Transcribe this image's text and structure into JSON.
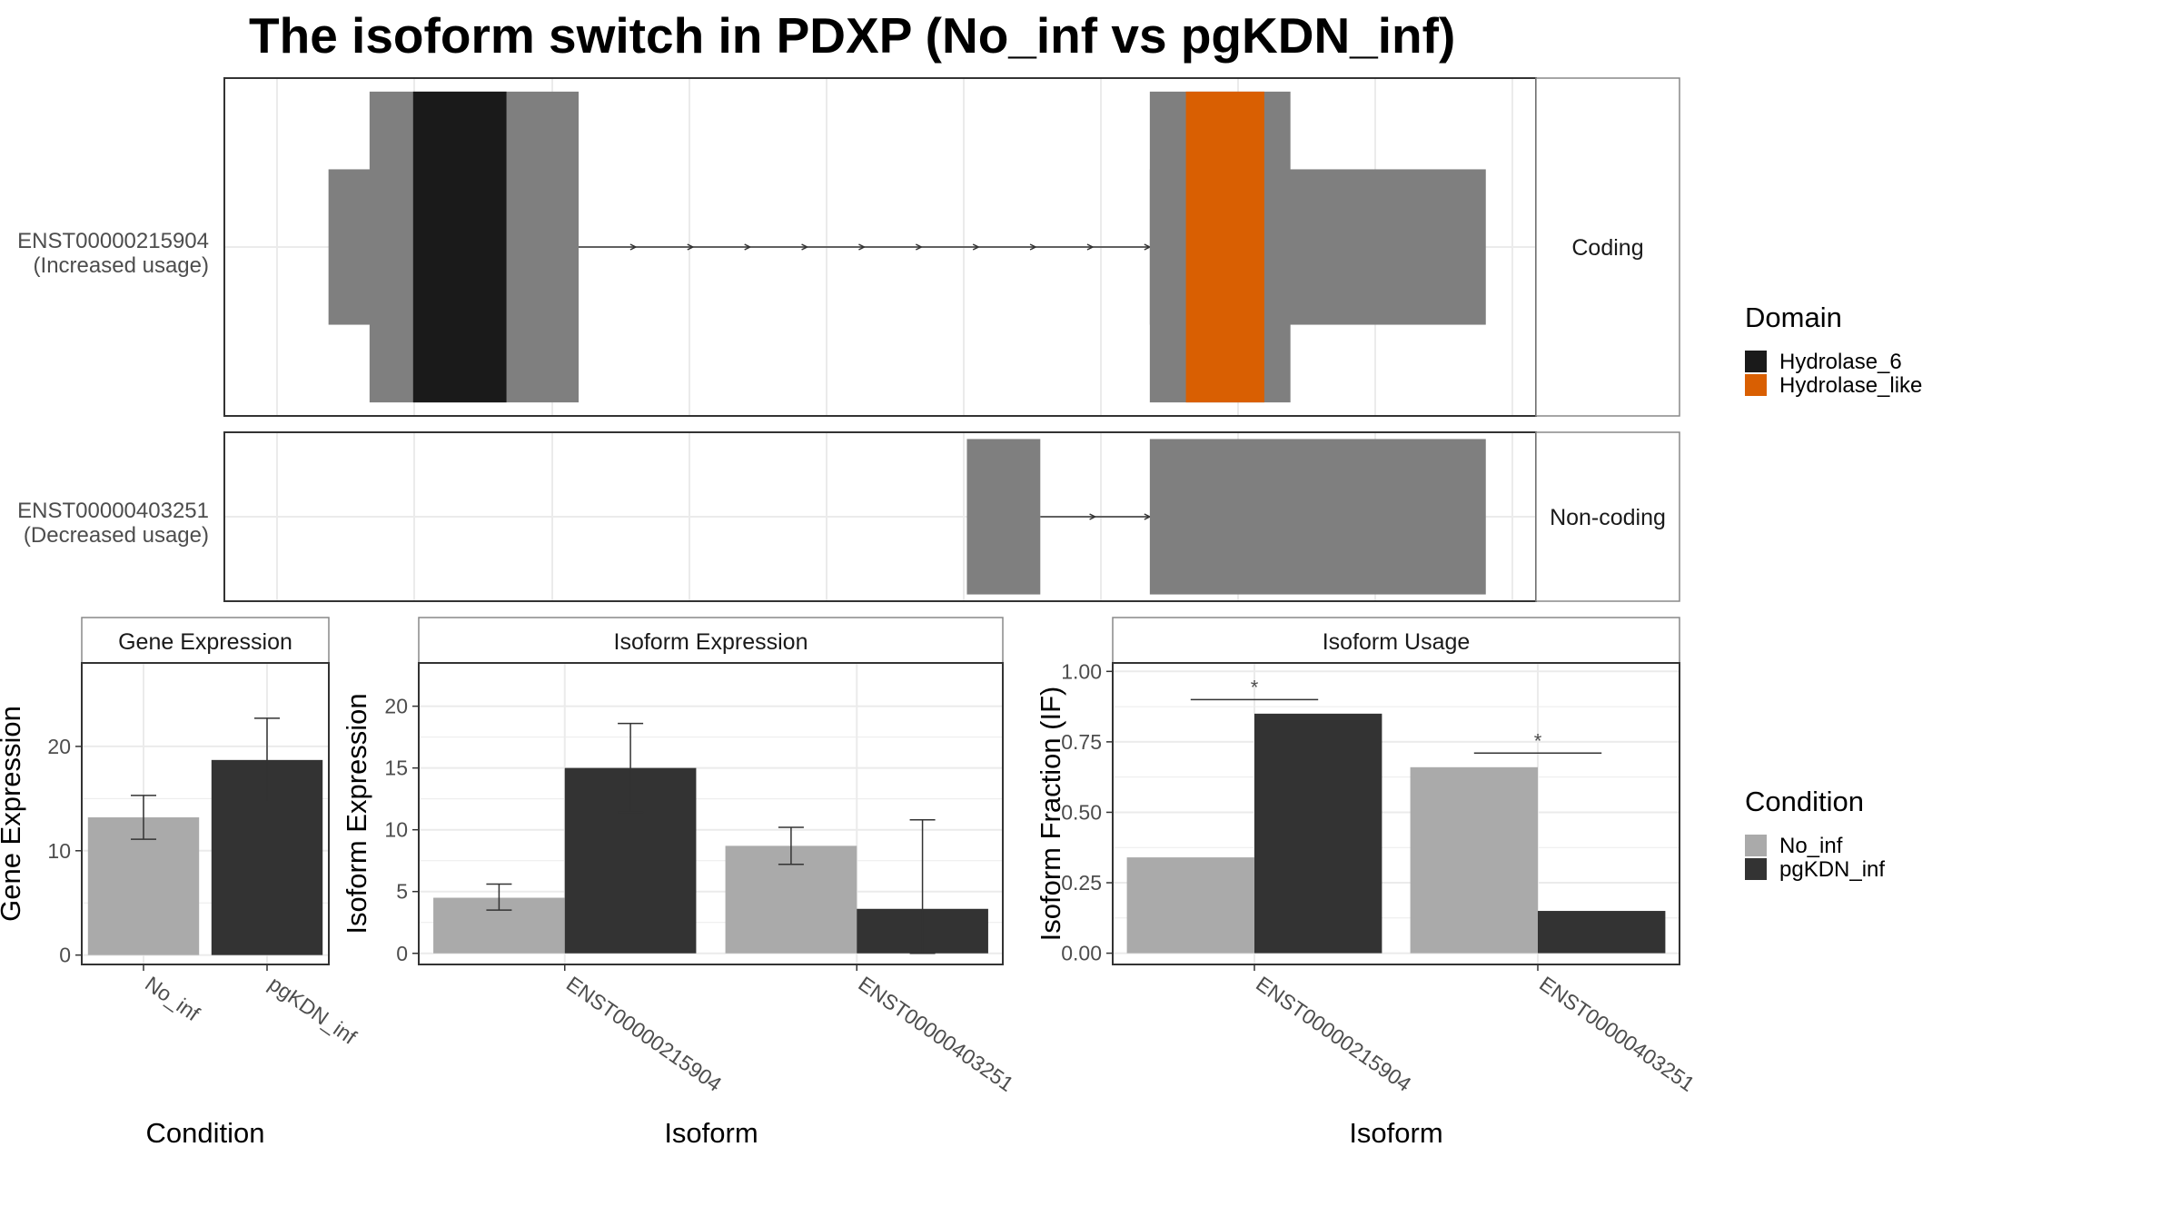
{
  "title": "The isoform switch in PDXP (No_inf vs pgKDN_inf)",
  "chart_data": [
    {
      "type": "gene-structure",
      "panels": [
        {
          "isoform": "ENST00000215904",
          "usage": "(Increased usage)",
          "strip": "Coding",
          "exons": [
            {
              "start": 0.045,
              "end": 0.115,
              "kind": "utr"
            },
            {
              "start": 0.078,
              "end": 0.246,
              "kind": "cds"
            },
            {
              "start": 0.113,
              "end": 0.188,
              "kind": "domain",
              "domain": "Hydrolase_6"
            },
            {
              "start": 0.705,
              "end": 0.975,
              "kind": "utr"
            },
            {
              "start": 0.705,
              "end": 0.818,
              "kind": "cds"
            },
            {
              "start": 0.734,
              "end": 0.797,
              "kind": "domain",
              "domain": "Hydrolase_like"
            }
          ],
          "introns": [
            {
              "start": 0.246,
              "end": 0.705
            }
          ]
        },
        {
          "isoform": "ENST00000403251",
          "usage": "(Decreased usage)",
          "strip": "Non-coding",
          "exons": [
            {
              "start": 0.558,
              "end": 0.617,
              "kind": "cds"
            },
            {
              "start": 0.705,
              "end": 0.975,
              "kind": "cds"
            }
          ],
          "introns": [
            {
              "start": 0.617,
              "end": 0.705
            }
          ]
        }
      ],
      "legend": {
        "title": "Domain",
        "entries": [
          {
            "label": "Hydrolase_6",
            "color": "#1a1a1a"
          },
          {
            "label": "Hydrolase_like",
            "color": "#d95f02"
          }
        ]
      }
    },
    {
      "type": "bar",
      "strip": "Gene Expression",
      "xlabel": "Condition",
      "ylabel": "Gene Expression",
      "categories": [
        "No_inf",
        "pgKDN_inf"
      ],
      "values": [
        13.2,
        18.7
      ],
      "errors": [
        [
          11.1,
          15.3
        ],
        [
          14.7,
          22.7
        ]
      ],
      "ylim": [
        -0.9,
        28
      ],
      "yticks": [
        0,
        10,
        20
      ]
    },
    {
      "type": "bar",
      "strip": "Isoform Expression",
      "xlabel": "Isoform",
      "ylabel": "Isoform Expression",
      "categories": [
        "ENST00000215904",
        "ENST00000403251"
      ],
      "series": [
        {
          "name": "No_inf",
          "values": [
            4.5,
            8.7
          ],
          "errors": [
            [
              3.5,
              5.6
            ],
            [
              7.2,
              10.2
            ]
          ]
        },
        {
          "name": "pgKDN_inf",
          "values": [
            15.0,
            3.6
          ],
          "errors": [
            [
              11.4,
              18.6
            ],
            [
              0.0,
              10.8
            ]
          ]
        }
      ],
      "ylim": [
        -0.9,
        23.5
      ],
      "yticks": [
        0,
        5,
        10,
        15,
        20
      ]
    },
    {
      "type": "bar",
      "strip": "Isoform Usage",
      "xlabel": "Isoform",
      "ylabel": "Isoform Fraction (IF)",
      "categories": [
        "ENST00000215904",
        "ENST00000403251"
      ],
      "series": [
        {
          "name": "No_inf",
          "values": [
            0.34,
            0.66
          ]
        },
        {
          "name": "pgKDN_inf",
          "values": [
            0.85,
            0.15
          ]
        }
      ],
      "significance": [
        "*",
        "*"
      ],
      "ylim": [
        -0.04,
        1.03
      ],
      "yticks": [
        "0.00",
        "0.25",
        "0.50",
        "0.75",
        "1.00"
      ]
    }
  ],
  "condition_legend": {
    "title": "Condition",
    "entries": [
      {
        "label": "No_inf",
        "color": "#aaaaaa"
      },
      {
        "label": "pgKDN_inf",
        "color": "#333333"
      }
    ]
  },
  "colors": {
    "utr": "#7f7f7f",
    "cds": "#7f7f7f",
    "grid": "#ebebeb",
    "panel_border": "#333333"
  }
}
